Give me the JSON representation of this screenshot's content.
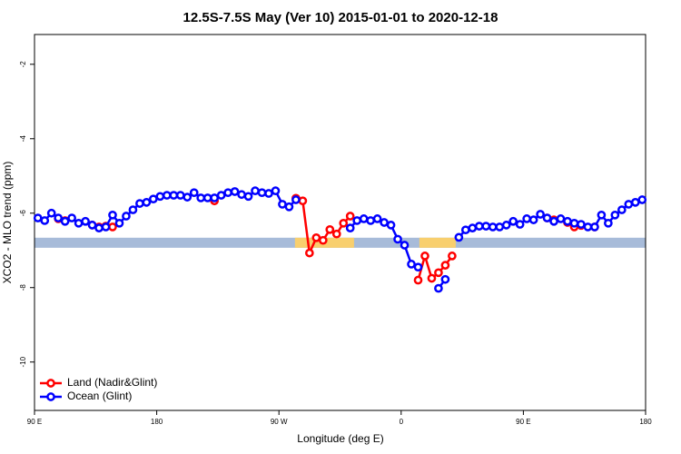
{
  "chart_data": {
    "type": "line",
    "title": "12.5S-7.5S May (Ver 10)   2015-01-01 to 2020-12-18",
    "x_label": "Longitude (deg E)",
    "y_label": "XCO2 - MLO trend (ppm)",
    "xlim": [
      90,
      540
    ],
    "ylim": [
      -11.3,
      -1.2
    ],
    "xticks": [
      {
        "value": 90,
        "label": "90 E"
      },
      {
        "value": 180,
        "label": "180"
      },
      {
        "value": 270,
        "label": "90 W"
      },
      {
        "value": 360,
        "label": "0"
      },
      {
        "value": 450,
        "label": "90 E"
      },
      {
        "value": 540,
        "label": "180"
      }
    ],
    "yticks": [
      -2,
      -4,
      -6,
      -8,
      -10
    ],
    "legend": "bottom-left",
    "background_band": {
      "y": [
        -6.93,
        -6.66
      ],
      "color": "#a7bbd9"
    },
    "highlight_spans": [
      {
        "x": [
          281.8,
          325.3
        ],
        "color": "#f8cf6e"
      },
      {
        "x": [
          373.4,
          400.2
        ],
        "color": "#f8cf6e"
      }
    ],
    "x": [
      92.5,
      97.5,
      102.5,
      107.5,
      112.5,
      117.5,
      122.5,
      127.5,
      132.5,
      137.5,
      142.5,
      147.5,
      152.5,
      157.5,
      162.5,
      167.5,
      172.5,
      177.5,
      182.5,
      187.5,
      192.5,
      197.5,
      202.5,
      207.5,
      212.5,
      217.5,
      222.5,
      227.5,
      232.5,
      237.5,
      242.5,
      247.5,
      252.5,
      257.5,
      262.5,
      267.5,
      272.5,
      277.5,
      282.5,
      287.5,
      292.5,
      297.5,
      302.5,
      307.5,
      312.5,
      317.5,
      322.5,
      327.5,
      332.5,
      337.5,
      342.5,
      347.5,
      352.5,
      357.5,
      362.5,
      367.5,
      372.5,
      377.5,
      382.5,
      387.5,
      392.5,
      397.5,
      402.5,
      407.5,
      412.5,
      417.5,
      422.5,
      427.5,
      432.5,
      437.5,
      442.5,
      447.5,
      452.5,
      457.5,
      462.5,
      467.5,
      472.5,
      477.5,
      482.5,
      487.5,
      492.5,
      497.5,
      502.5,
      507.5,
      512.5,
      517.5,
      522.5,
      527.5,
      532.5,
      537.5
    ],
    "series": [
      {
        "name": "Land (Nadir&Glint)",
        "color": "#ff0000",
        "values": [
          null,
          null,
          null,
          -6.15,
          -6.2,
          null,
          null,
          null,
          -6.32,
          -6.37,
          -6.35,
          -6.37,
          null,
          null,
          null,
          null,
          null,
          null,
          null,
          null,
          null,
          null,
          null,
          null,
          null,
          null,
          -5.67,
          null,
          null,
          null,
          null,
          null,
          null,
          null,
          null,
          null,
          null,
          null,
          -5.6,
          -5.67,
          -7.07,
          -6.66,
          -6.73,
          -6.44,
          -6.56,
          -6.27,
          -6.08,
          null,
          null,
          null,
          null,
          null,
          null,
          null,
          null,
          null,
          -7.8,
          -7.15,
          -7.75,
          -7.6,
          -7.4,
          -7.15,
          null,
          null,
          null,
          null,
          null,
          null,
          null,
          null,
          null,
          null,
          null,
          null,
          null,
          -6.13,
          -6.18,
          null,
          -6.25,
          -6.37,
          -6.33,
          null,
          -6.37,
          null,
          null,
          null,
          null,
          null,
          null,
          null
        ]
      },
      {
        "name": "Ocean (Glint)",
        "color": "#0000ff",
        "values": [
          -6.13,
          -6.2,
          -6.0,
          -6.13,
          -6.22,
          -6.13,
          -6.27,
          -6.22,
          -6.32,
          -6.4,
          -6.37,
          -6.05,
          -6.27,
          -6.08,
          -5.91,
          -5.74,
          -5.71,
          -5.62,
          -5.55,
          -5.52,
          -5.52,
          -5.52,
          -5.57,
          -5.45,
          -5.59,
          -5.59,
          -5.59,
          -5.52,
          -5.45,
          -5.42,
          -5.5,
          -5.55,
          -5.4,
          -5.45,
          -5.47,
          -5.4,
          -5.76,
          -5.83,
          -5.64,
          null,
          null,
          null,
          null,
          null,
          null,
          null,
          -6.4,
          -6.2,
          -6.15,
          -6.2,
          -6.15,
          -6.25,
          -6.32,
          -6.7,
          -6.86,
          -7.37,
          -7.45,
          null,
          null,
          -8.02,
          -7.78,
          null,
          -6.65,
          -6.45,
          -6.4,
          -6.35,
          -6.35,
          -6.37,
          -6.37,
          -6.32,
          -6.22,
          -6.3,
          -6.15,
          -6.18,
          -6.03,
          -6.13,
          -6.22,
          -6.15,
          -6.22,
          -6.27,
          -6.3,
          -6.37,
          -6.37,
          -6.05,
          -6.27,
          -6.05,
          -5.91,
          -5.76,
          -5.71,
          -5.64
        ]
      }
    ]
  }
}
